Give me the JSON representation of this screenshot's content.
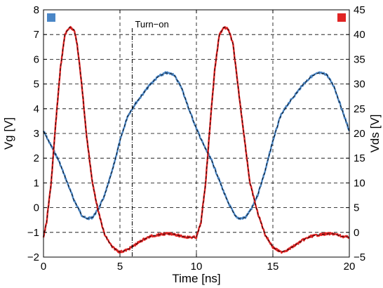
{
  "chart_data": {
    "type": "line",
    "xlabel": "Time [ns]",
    "ylabel_left": "Vg [V]",
    "ylabel_right": "Vds [V]",
    "xlim": [
      0,
      20
    ],
    "ylim_left": [
      -2,
      8
    ],
    "ylim_right": [
      -5,
      45
    ],
    "xticks": [
      0,
      5,
      10,
      15,
      20
    ],
    "yticks_left": [
      -2,
      -1,
      0,
      1,
      2,
      3,
      4,
      5,
      6,
      7,
      8
    ],
    "yticks_right": [
      -5,
      0,
      5,
      10,
      15,
      20,
      25,
      30,
      35,
      40,
      45
    ],
    "grid": true,
    "annotation": {
      "text": "Turn−on",
      "x": 5.8
    },
    "legend": [
      {
        "axis": "left",
        "color": "#4a86c6"
      },
      {
        "axis": "right",
        "color": "#e02424"
      }
    ],
    "series": [
      {
        "axis": "left",
        "color": "#4a86c6",
        "x": [
          0,
          0.5,
          1,
          1.5,
          2,
          2.5,
          2.8,
          3.2,
          3.6,
          4,
          4.5,
          5,
          5.5,
          6,
          6.5,
          7,
          7.5,
          8,
          8.5,
          9,
          9.5,
          10,
          10.5,
          11,
          11.5,
          12,
          12.5,
          12.8,
          13.2,
          13.6,
          14,
          14.5,
          15,
          15.5,
          16,
          16.5,
          17,
          17.5,
          18,
          18.5,
          19,
          19.5,
          20
        ],
        "y": [
          3.1,
          2.5,
          1.9,
          1.1,
          0.3,
          -0.3,
          -0.45,
          -0.4,
          -0.05,
          0.5,
          1.5,
          2.7,
          3.7,
          4.2,
          4.6,
          5.0,
          5.3,
          5.45,
          5.4,
          4.9,
          4.0,
          3.2,
          2.5,
          1.9,
          1.1,
          0.3,
          -0.3,
          -0.45,
          -0.4,
          -0.05,
          0.5,
          1.5,
          2.7,
          3.7,
          4.2,
          4.6,
          5.0,
          5.3,
          5.45,
          5.4,
          4.9,
          4.0,
          3.1
        ]
      },
      {
        "axis": "right",
        "color": "#e02424",
        "x": [
          0,
          0.2,
          0.5,
          0.8,
          1.1,
          1.4,
          1.7,
          2.0,
          2.2,
          2.5,
          2.8,
          3.2,
          3.6,
          4.0,
          4.5,
          5.0,
          5.5,
          6.0,
          6.5,
          7.0,
          7.5,
          8.0,
          8.5,
          9.0,
          9.5,
          10.0,
          10.3,
          10.6,
          10.9,
          11.2,
          11.5,
          11.8,
          12.1,
          12.4,
          12.7,
          13.1,
          13.5,
          14.0,
          14.5,
          15.0,
          15.5,
          16.0,
          16.5,
          17.0,
          17.5,
          18.0,
          18.5,
          19.0,
          19.5,
          20.0
        ],
        "y": [
          -1,
          2,
          10,
          22,
          33,
          40,
          41.5,
          41,
          38,
          30,
          20,
          10,
          4,
          -0.5,
          -3,
          -4,
          -3.5,
          -2.5,
          -1.5,
          -0.8,
          -0.5,
          -0.3,
          -0.3,
          -0.8,
          -1,
          -1,
          2,
          10,
          22,
          33,
          40,
          41.5,
          41,
          38,
          30,
          20,
          10,
          4,
          -0.5,
          -3,
          -4,
          -3.5,
          -2.5,
          -1.5,
          -0.8,
          -0.5,
          -0.3,
          -0.3,
          -0.8,
          -1
        ]
      }
    ]
  }
}
